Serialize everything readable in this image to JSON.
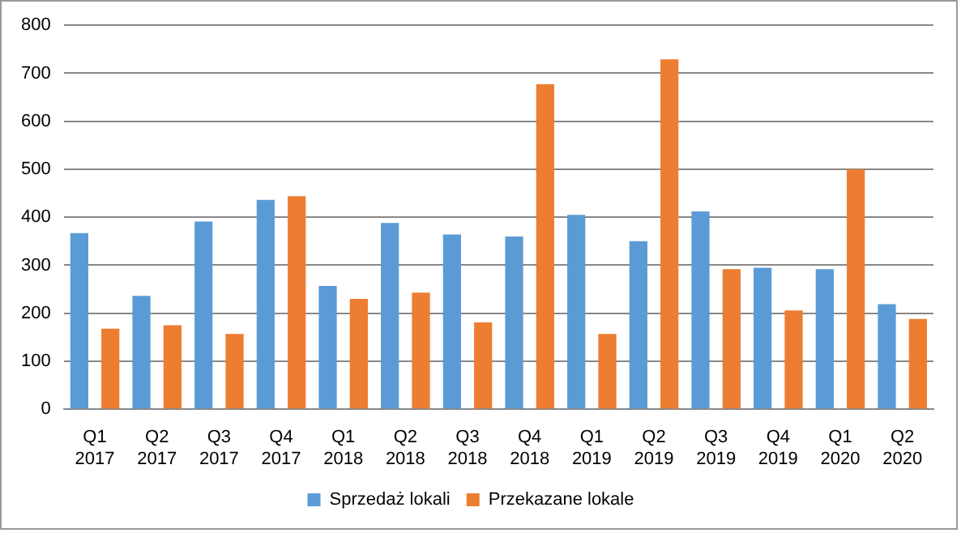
{
  "chart_data": {
    "type": "bar",
    "categories": [
      "Q1\n2017",
      "Q2\n2017",
      "Q3\n2017",
      "Q4\n2017",
      "Q1\n2018",
      "Q2\n2018",
      "Q3\n2018",
      "Q4\n2018",
      "Q1\n2019",
      "Q2\n2019",
      "Q3\n2019",
      "Q4\n2019",
      "Q1\n2020",
      "Q2\n2020"
    ],
    "series": [
      {
        "name": "Sprzedaż lokali",
        "color": "#5b9bd5",
        "values": [
          367,
          236,
          391,
          436,
          257,
          388,
          364,
          360,
          405,
          350,
          412,
          295,
          292,
          219
        ]
      },
      {
        "name": "Przekazane lokale",
        "color": "#ed7d31",
        "values": [
          168,
          175,
          157,
          444,
          230,
          243,
          181,
          677,
          157,
          729,
          292,
          206,
          500,
          188
        ]
      }
    ],
    "ylim": [
      0,
      800
    ],
    "yticks": [
      0,
      100,
      200,
      300,
      400,
      500,
      600,
      700,
      800
    ],
    "grid": "y",
    "legend": "bottom"
  }
}
